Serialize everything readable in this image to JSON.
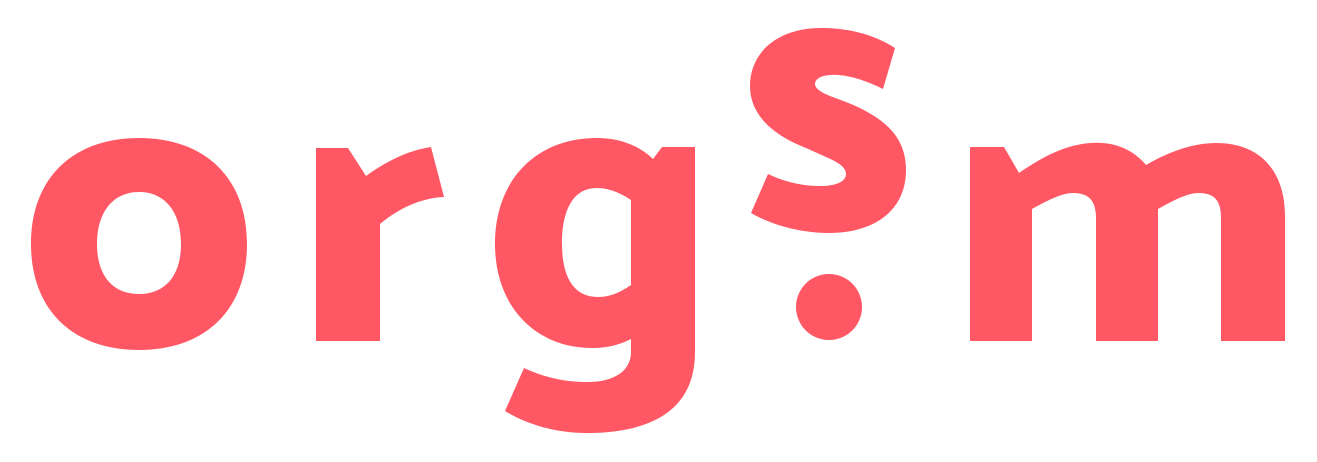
{
  "logo": {
    "wordmark": "org?m",
    "color": "#FF5864",
    "background": "#FFFFFF"
  }
}
